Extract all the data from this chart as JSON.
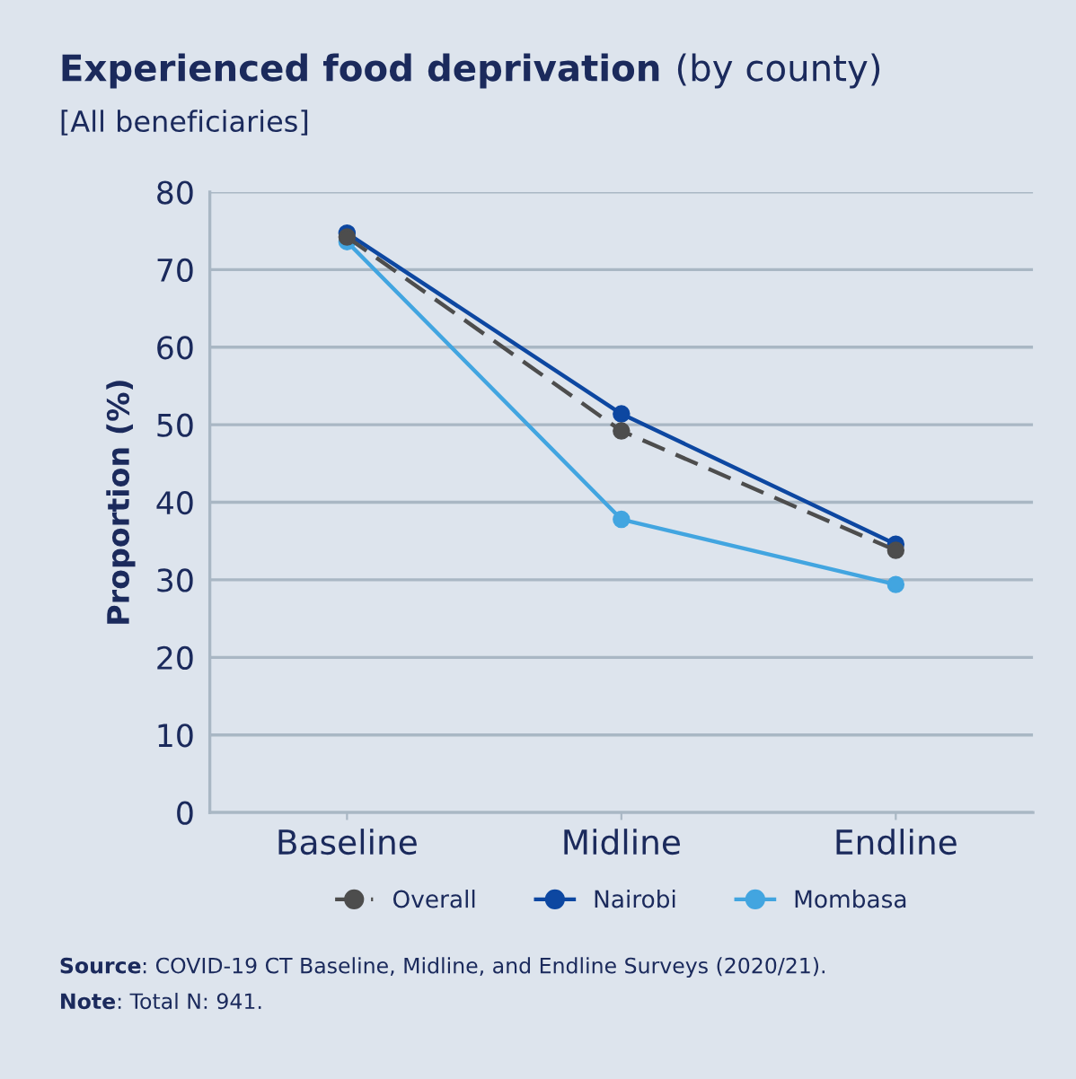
{
  "chart_data": {
    "type": "line",
    "title": "Experienced food deprivation (by county)",
    "subtitle": "[All beneficiaries]",
    "ylabel": "Proportion (%)",
    "categories": [
      "Baseline",
      "Midline",
      "Endline"
    ],
    "series": [
      {
        "name": "Overall",
        "color": "#4d4d4d",
        "line_style": "dashed",
        "values": [
          74.2,
          49.2,
          33.8
        ]
      },
      {
        "name": "Nairobi",
        "color": "#0d47a1",
        "line_style": "solid",
        "values": [
          74.7,
          51.4,
          34.6
        ]
      },
      {
        "name": "Mombasa",
        "color": "#42a5e0",
        "line_style": "solid",
        "values": [
          73.6,
          37.8,
          29.4
        ]
      }
    ],
    "ylim": [
      0,
      80
    ],
    "yticks": [
      0,
      10,
      20,
      30,
      40,
      50,
      60,
      70,
      80
    ],
    "grid": "y",
    "legend": "bottom",
    "marker": "circle",
    "annotations": [
      "Source: COVID-19 CT Baseline, Midline, and Endline Surveys (2020/21).",
      "Note: Total N: 941."
    ]
  }
}
